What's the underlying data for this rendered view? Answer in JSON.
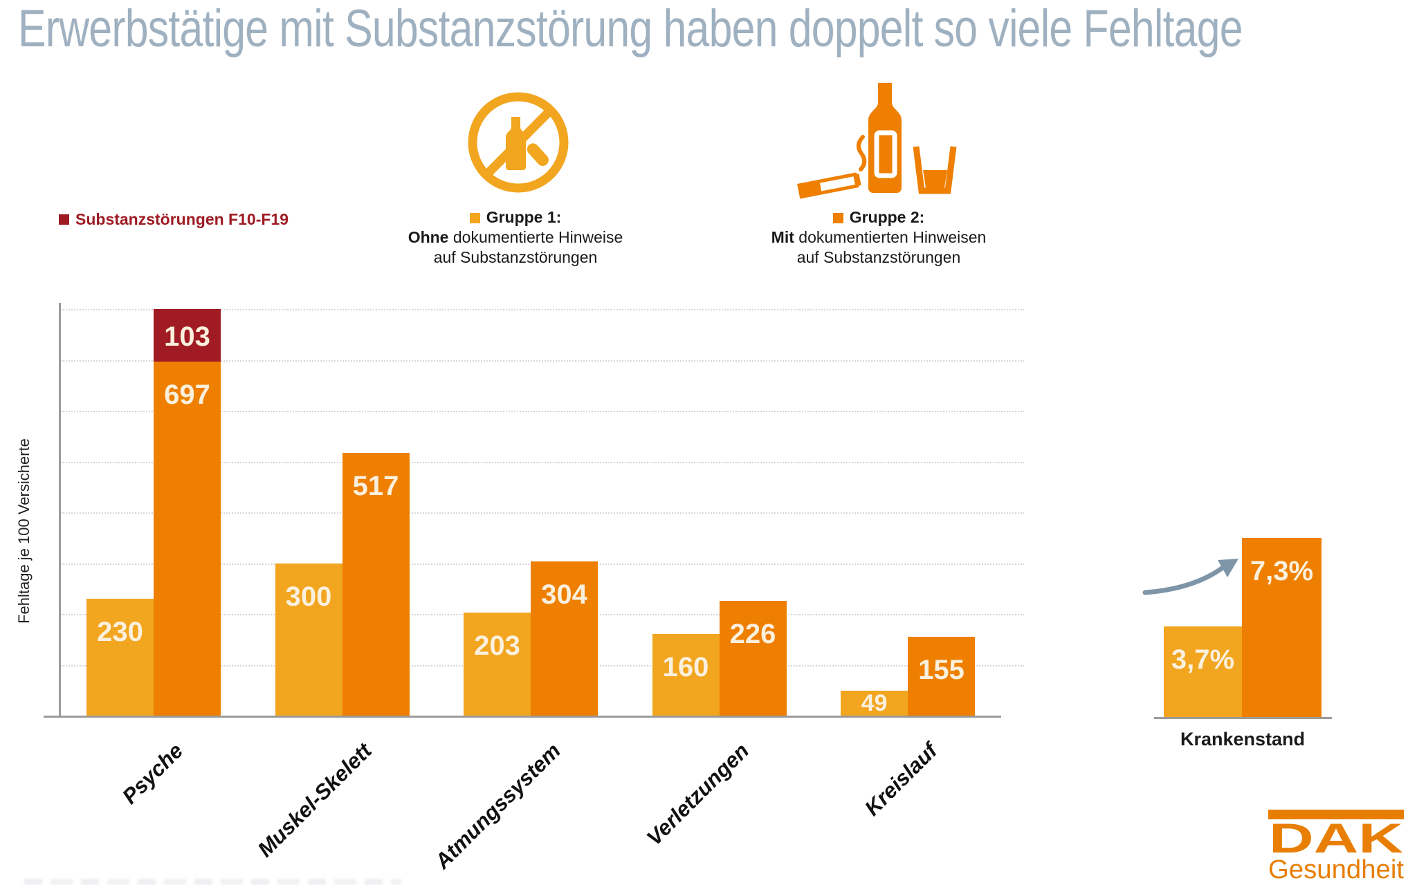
{
  "title": "Erwerbstätige mit Substanzstörung haben doppelt so viele Fehltage",
  "legend": {
    "substanz": {
      "label": "Substanzstörungen F10-F19",
      "color": "#9E1B23"
    },
    "gruppe1": {
      "title": "Gruppe 1:",
      "bold_word": "Ohne",
      "line2_rest": " dokumentierte Hinweise",
      "line3": "auf Substanzstörungen",
      "color": "#F2A51F",
      "icon": "no-substances-icon"
    },
    "gruppe2": {
      "title": "Gruppe 2:",
      "bold_word": "Mit",
      "line2_rest": " dokumentierten Hinweisen",
      "line3": "auf Substanzstörungen",
      "color": "#EE7F00",
      "icon": "substances-icon"
    }
  },
  "chart_data": [
    {
      "type": "bar",
      "title": "Erwerbstätige mit Substanzstörung haben doppelt so viele Fehltage",
      "xlabel": "",
      "ylabel": "Fehltage je 100 Versicherte",
      "categories": [
        "Psyche",
        "Muskel-Skelett",
        "Atmungssystem",
        "Verletzungen",
        "Kreislauf"
      ],
      "series": [
        {
          "name": "Gruppe 1: Ohne dokumentierte Hinweise auf Substanzstörungen",
          "color": "#F2A51F",
          "values": [
            230,
            300,
            203,
            160,
            49
          ]
        },
        {
          "name": "Gruppe 2: Mit dokumentierten Hinweisen auf Substanzstörungen",
          "color": "#EE7F00",
          "values": [
            697,
            517,
            304,
            226,
            155
          ]
        },
        {
          "name": "Substanzstörungen F10-F19",
          "color": "#A01B23",
          "stacked_on": "Gruppe 2",
          "values": [
            103,
            null,
            null,
            null,
            null
          ]
        }
      ],
      "ylim": [
        0,
        800
      ],
      "gridline_step": 100,
      "grid": "horizontal-dotted",
      "legend_position": "top",
      "value_labels": "inside-bars"
    },
    {
      "type": "bar",
      "title": "Krankenstand",
      "categories": [
        "Gruppe 1",
        "Gruppe 2"
      ],
      "values": [
        3.7,
        7.3
      ],
      "labels": [
        "3,7%",
        "7,3%"
      ],
      "annotation": "increase-arrow",
      "value_labels": "inside-bars"
    }
  ],
  "logo": {
    "brand": "DAK",
    "sub": "Gesundheit",
    "color": "#E87E04"
  }
}
